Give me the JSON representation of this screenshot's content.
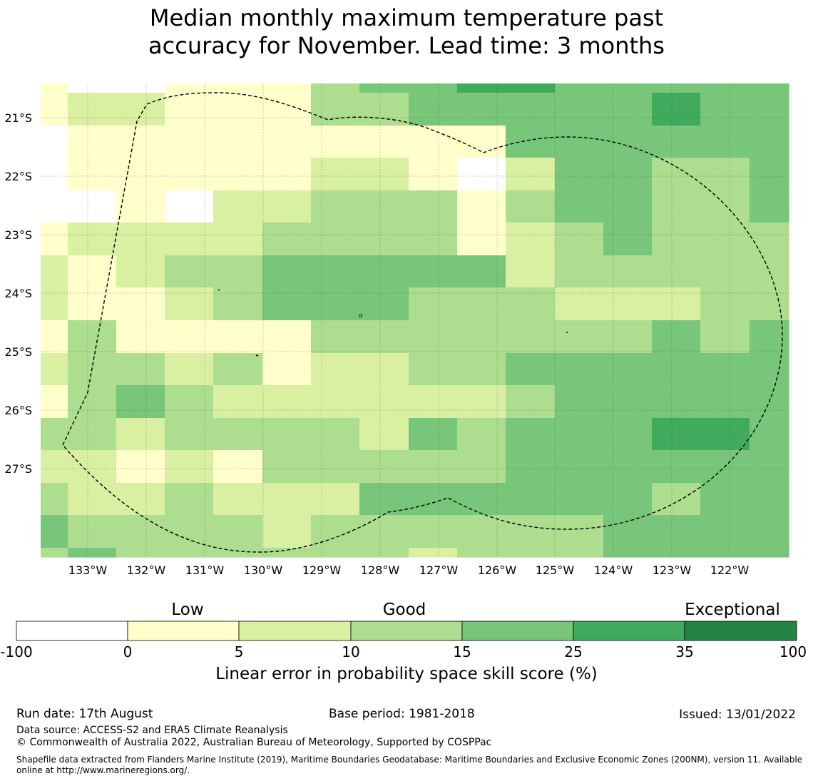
{
  "title": {
    "line1": "Median monthly maximum temperature past",
    "line2": "accuracy for November. Lead time: 3 months"
  },
  "map": {
    "lat_labels": [
      "21°S",
      "22°S",
      "23°S",
      "24°S",
      "25°S",
      "26°S",
      "27°S"
    ],
    "lon_labels": [
      "133°W",
      "132°W",
      "131°W",
      "130°W",
      "129°W",
      "128°W",
      "127°W",
      "126°W",
      "125°W",
      "124°W",
      "123°W",
      "122°W"
    ],
    "grid": [
      [
        1,
        0,
        0,
        1,
        1,
        1,
        3,
        4,
        4,
        5,
        5,
        4,
        4,
        4,
        4,
        4,
        4,
        4,
        4
      ],
      [
        1,
        2,
        2,
        1,
        1,
        1,
        3,
        3,
        4,
        4,
        4,
        4,
        4,
        5,
        4,
        4,
        4,
        5,
        5
      ],
      [
        0,
        1,
        1,
        1,
        1,
        1,
        1,
        1,
        1,
        1,
        4,
        4,
        4,
        4,
        4,
        4,
        4,
        4,
        5
      ],
      [
        0,
        1,
        1,
        1,
        1,
        1,
        2,
        2,
        1,
        0,
        2,
        4,
        4,
        3,
        3,
        4,
        4,
        4,
        5
      ],
      [
        0,
        0,
        1,
        0,
        2,
        2,
        3,
        3,
        3,
        1,
        3,
        4,
        4,
        3,
        3,
        4,
        3,
        4,
        4
      ],
      [
        1,
        2,
        2,
        2,
        2,
        3,
        3,
        3,
        3,
        1,
        2,
        3,
        4,
        3,
        3,
        3,
        4,
        3,
        3
      ],
      [
        2,
        1,
        2,
        3,
        3,
        4,
        4,
        4,
        4,
        4,
        2,
        3,
        3,
        3,
        3,
        3,
        3,
        4,
        4
      ],
      [
        2,
        1,
        1,
        2,
        3,
        4,
        4,
        4,
        3,
        3,
        3,
        2,
        2,
        2,
        3,
        3,
        3,
        3,
        3
      ],
      [
        1,
        3,
        1,
        1,
        1,
        1,
        3,
        3,
        3,
        3,
        3,
        3,
        3,
        4,
        3,
        4,
        3,
        3,
        3
      ],
      [
        2,
        3,
        3,
        2,
        3,
        1,
        2,
        2,
        3,
        3,
        4,
        4,
        4,
        4,
        4,
        4,
        4,
        4,
        4
      ],
      [
        1,
        3,
        4,
        3,
        2,
        2,
        2,
        2,
        2,
        2,
        3,
        4,
        4,
        4,
        4,
        4,
        4,
        4,
        4
      ],
      [
        3,
        3,
        2,
        3,
        3,
        3,
        3,
        2,
        4,
        3,
        4,
        4,
        4,
        5,
        5,
        4,
        4,
        4,
        4
      ],
      [
        2,
        2,
        1,
        2,
        1,
        3,
        3,
        3,
        3,
        3,
        4,
        4,
        4,
        4,
        4,
        4,
        4,
        3,
        4
      ],
      [
        3,
        2,
        2,
        3,
        2,
        2,
        2,
        4,
        4,
        4,
        4,
        4,
        4,
        3,
        4,
        4,
        4,
        4,
        4
      ],
      [
        4,
        3,
        3,
        3,
        3,
        2,
        3,
        3,
        3,
        3,
        3,
        3,
        4,
        4,
        4,
        4,
        4,
        4,
        4
      ],
      [
        3,
        4,
        3,
        3,
        3,
        3,
        3,
        3,
        2,
        3,
        3,
        3,
        4,
        4,
        4,
        4,
        4,
        4,
        4
      ]
    ],
    "island_labels": [
      "ɑ"
    ]
  },
  "colorbar": {
    "categories": [
      "Low",
      "Good",
      "Exceptional"
    ],
    "ticks": [
      "-100",
      "0",
      "5",
      "10",
      "15",
      "25",
      "35",
      "100"
    ],
    "colors": [
      "#ffffff",
      "#ffffcc",
      "#d9f0a3",
      "#addd8e",
      "#78c679",
      "#41ab5d",
      "#238443"
    ],
    "label": "Linear error in probability space skill score (%)"
  },
  "footer": {
    "run_date": "Run date: 17th August",
    "base_period": "Base period: 1981-2018",
    "issued": "Issued: 13/01/2022",
    "data_source": "Data source: ACCESS-S2 and ERA5 Climate Reanalysis",
    "copyright": "© Commonwealth of Australia 2022, Australian Bureau of Meteorology, Supported by COSPPac",
    "shapefile": "Shapefile data extracted from Flanders Marine Institute (2019), Maritime Boundaries Geodatabase: Maritime Boundaries and Exclusive Economic Zones (200NM), version 11. Available online at http://www.marineregions.org/."
  }
}
